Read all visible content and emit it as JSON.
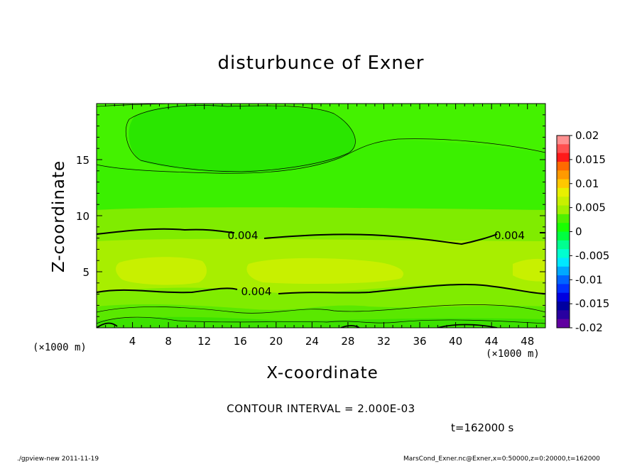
{
  "chart_data": {
    "type": "heatmap",
    "title": "disturbunce of Exner",
    "xlabel": "X-coordinate",
    "ylabel": "Z-coordinate",
    "x_unit": "(×1000 m)",
    "xlim": [
      0,
      50
    ],
    "ylim": [
      0,
      20
    ],
    "x_ticks": [
      4,
      8,
      12,
      16,
      20,
      24,
      28,
      32,
      36,
      40,
      44,
      48
    ],
    "y_ticks": [
      5,
      10,
      15
    ],
    "contour_interval": "CONTOUR INTERVAL = 2.000E-03",
    "contour_labels": [
      {
        "text": "0.004",
        "x": 16.3,
        "y": 8.3
      },
      {
        "text": "0.004",
        "x": 46.0,
        "y": 8.3
      },
      {
        "text": "0.004",
        "x": 17.8,
        "y": 3.3
      }
    ],
    "colorbar": {
      "range": [
        -0.02,
        0.02
      ],
      "tick_labels": [
        "0.02",
        "0.015",
        "0.01",
        "0.005",
        "0",
        "-0.005",
        "-0.01",
        "-0.015",
        "-0.02"
      ],
      "colors": [
        "#ff9090",
        "#ff5050",
        "#ff1a1a",
        "#ff6a00",
        "#ff9a00",
        "#ffc800",
        "#e8f000",
        "#c8f000",
        "#a0f000",
        "#50f000",
        "#1aff00",
        "#00ff40",
        "#00ff90",
        "#00ffd0",
        "#00e8ff",
        "#00a8ff",
        "#0064ff",
        "#0030ff",
        "#0000e0",
        "#0000a0",
        "#2800a0",
        "#6000a0"
      ]
    },
    "time": "t=162000 s"
  },
  "footer": {
    "left": "./gpview-new   2011-11-19",
    "right": "MarsCond_Exner.nc@Exner,x=0:50000,z=0:20000,t=162000"
  },
  "colors": {
    "base_field": "#22e800",
    "upper_band": "#3bf000",
    "mid_band": "#a8ee00",
    "core": "#c8f000",
    "bottom": "#66ee00"
  }
}
